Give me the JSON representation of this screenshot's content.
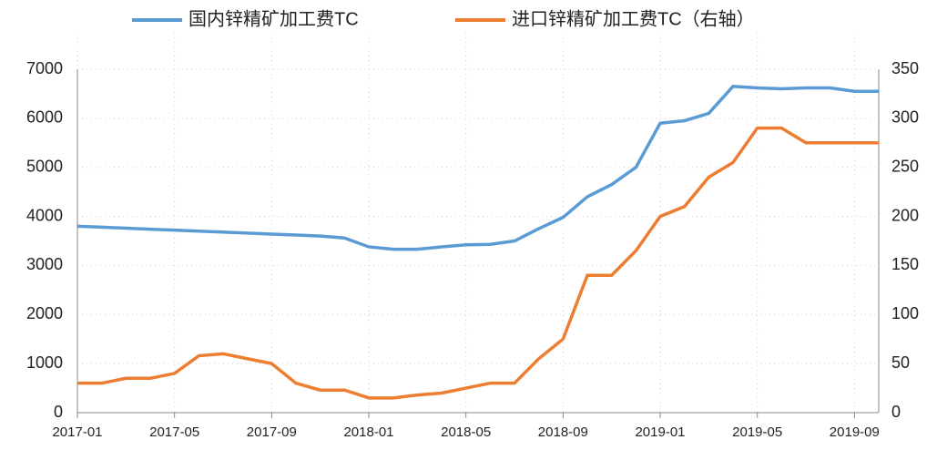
{
  "chart_data": {
    "type": "line",
    "x": [
      "2017-01",
      "2017-02",
      "2017-03",
      "2017-04",
      "2017-05",
      "2017-06",
      "2017-07",
      "2017-08",
      "2017-09",
      "2017-10",
      "2017-11",
      "2017-12",
      "2018-01",
      "2018-02",
      "2018-03",
      "2018-04",
      "2018-05",
      "2018-06",
      "2018-07",
      "2018-08",
      "2018-09",
      "2018-10",
      "2018-11",
      "2018-12",
      "2019-01",
      "2019-02",
      "2019-03",
      "2019-04",
      "2019-05",
      "2019-06",
      "2019-07",
      "2019-08",
      "2019-09",
      "2019-10"
    ],
    "xlim": [
      "2017-01",
      "2019-10"
    ],
    "xticks": [
      "2017-01",
      "2017-05",
      "2017-09",
      "2018-01",
      "2018-05",
      "2018-09",
      "2019-01",
      "2019-05",
      "2019-09"
    ],
    "series": [
      {
        "name": "国内锌精矿加工费TC",
        "color": "#5b9bd5",
        "values": [
          3800,
          3780,
          3760,
          3740,
          3720,
          3700,
          3680,
          3660,
          3640,
          3620,
          3600,
          3560,
          3380,
          3330,
          3330,
          3380,
          3420,
          3430,
          3500,
          3750,
          3980,
          4400,
          4650,
          5000,
          5900,
          5950,
          6100,
          6650,
          6620,
          6600,
          6620,
          6620,
          6550,
          6550
        ]
      },
      {
        "name": "进口锌精矿加工费TC（右轴）",
        "color": "#ed7d31",
        "axis": "y2",
        "values": [
          30,
          30,
          35,
          35,
          40,
          58,
          60,
          55,
          50,
          30,
          23,
          23,
          15,
          15,
          18,
          20,
          25,
          30,
          30,
          55,
          75,
          140,
          140,
          165,
          200,
          210,
          240,
          255,
          290,
          290,
          275,
          275,
          275,
          275
        ]
      }
    ],
    "ylim": [
      0,
      7000
    ],
    "yticks": [
      0,
      1000,
      2000,
      3000,
      4000,
      5000,
      6000,
      7000
    ],
    "y2lim": [
      0,
      350
    ],
    "y2ticks": [
      0,
      50,
      100,
      150,
      200,
      250,
      300,
      350
    ],
    "grid": true,
    "legend": "top"
  }
}
